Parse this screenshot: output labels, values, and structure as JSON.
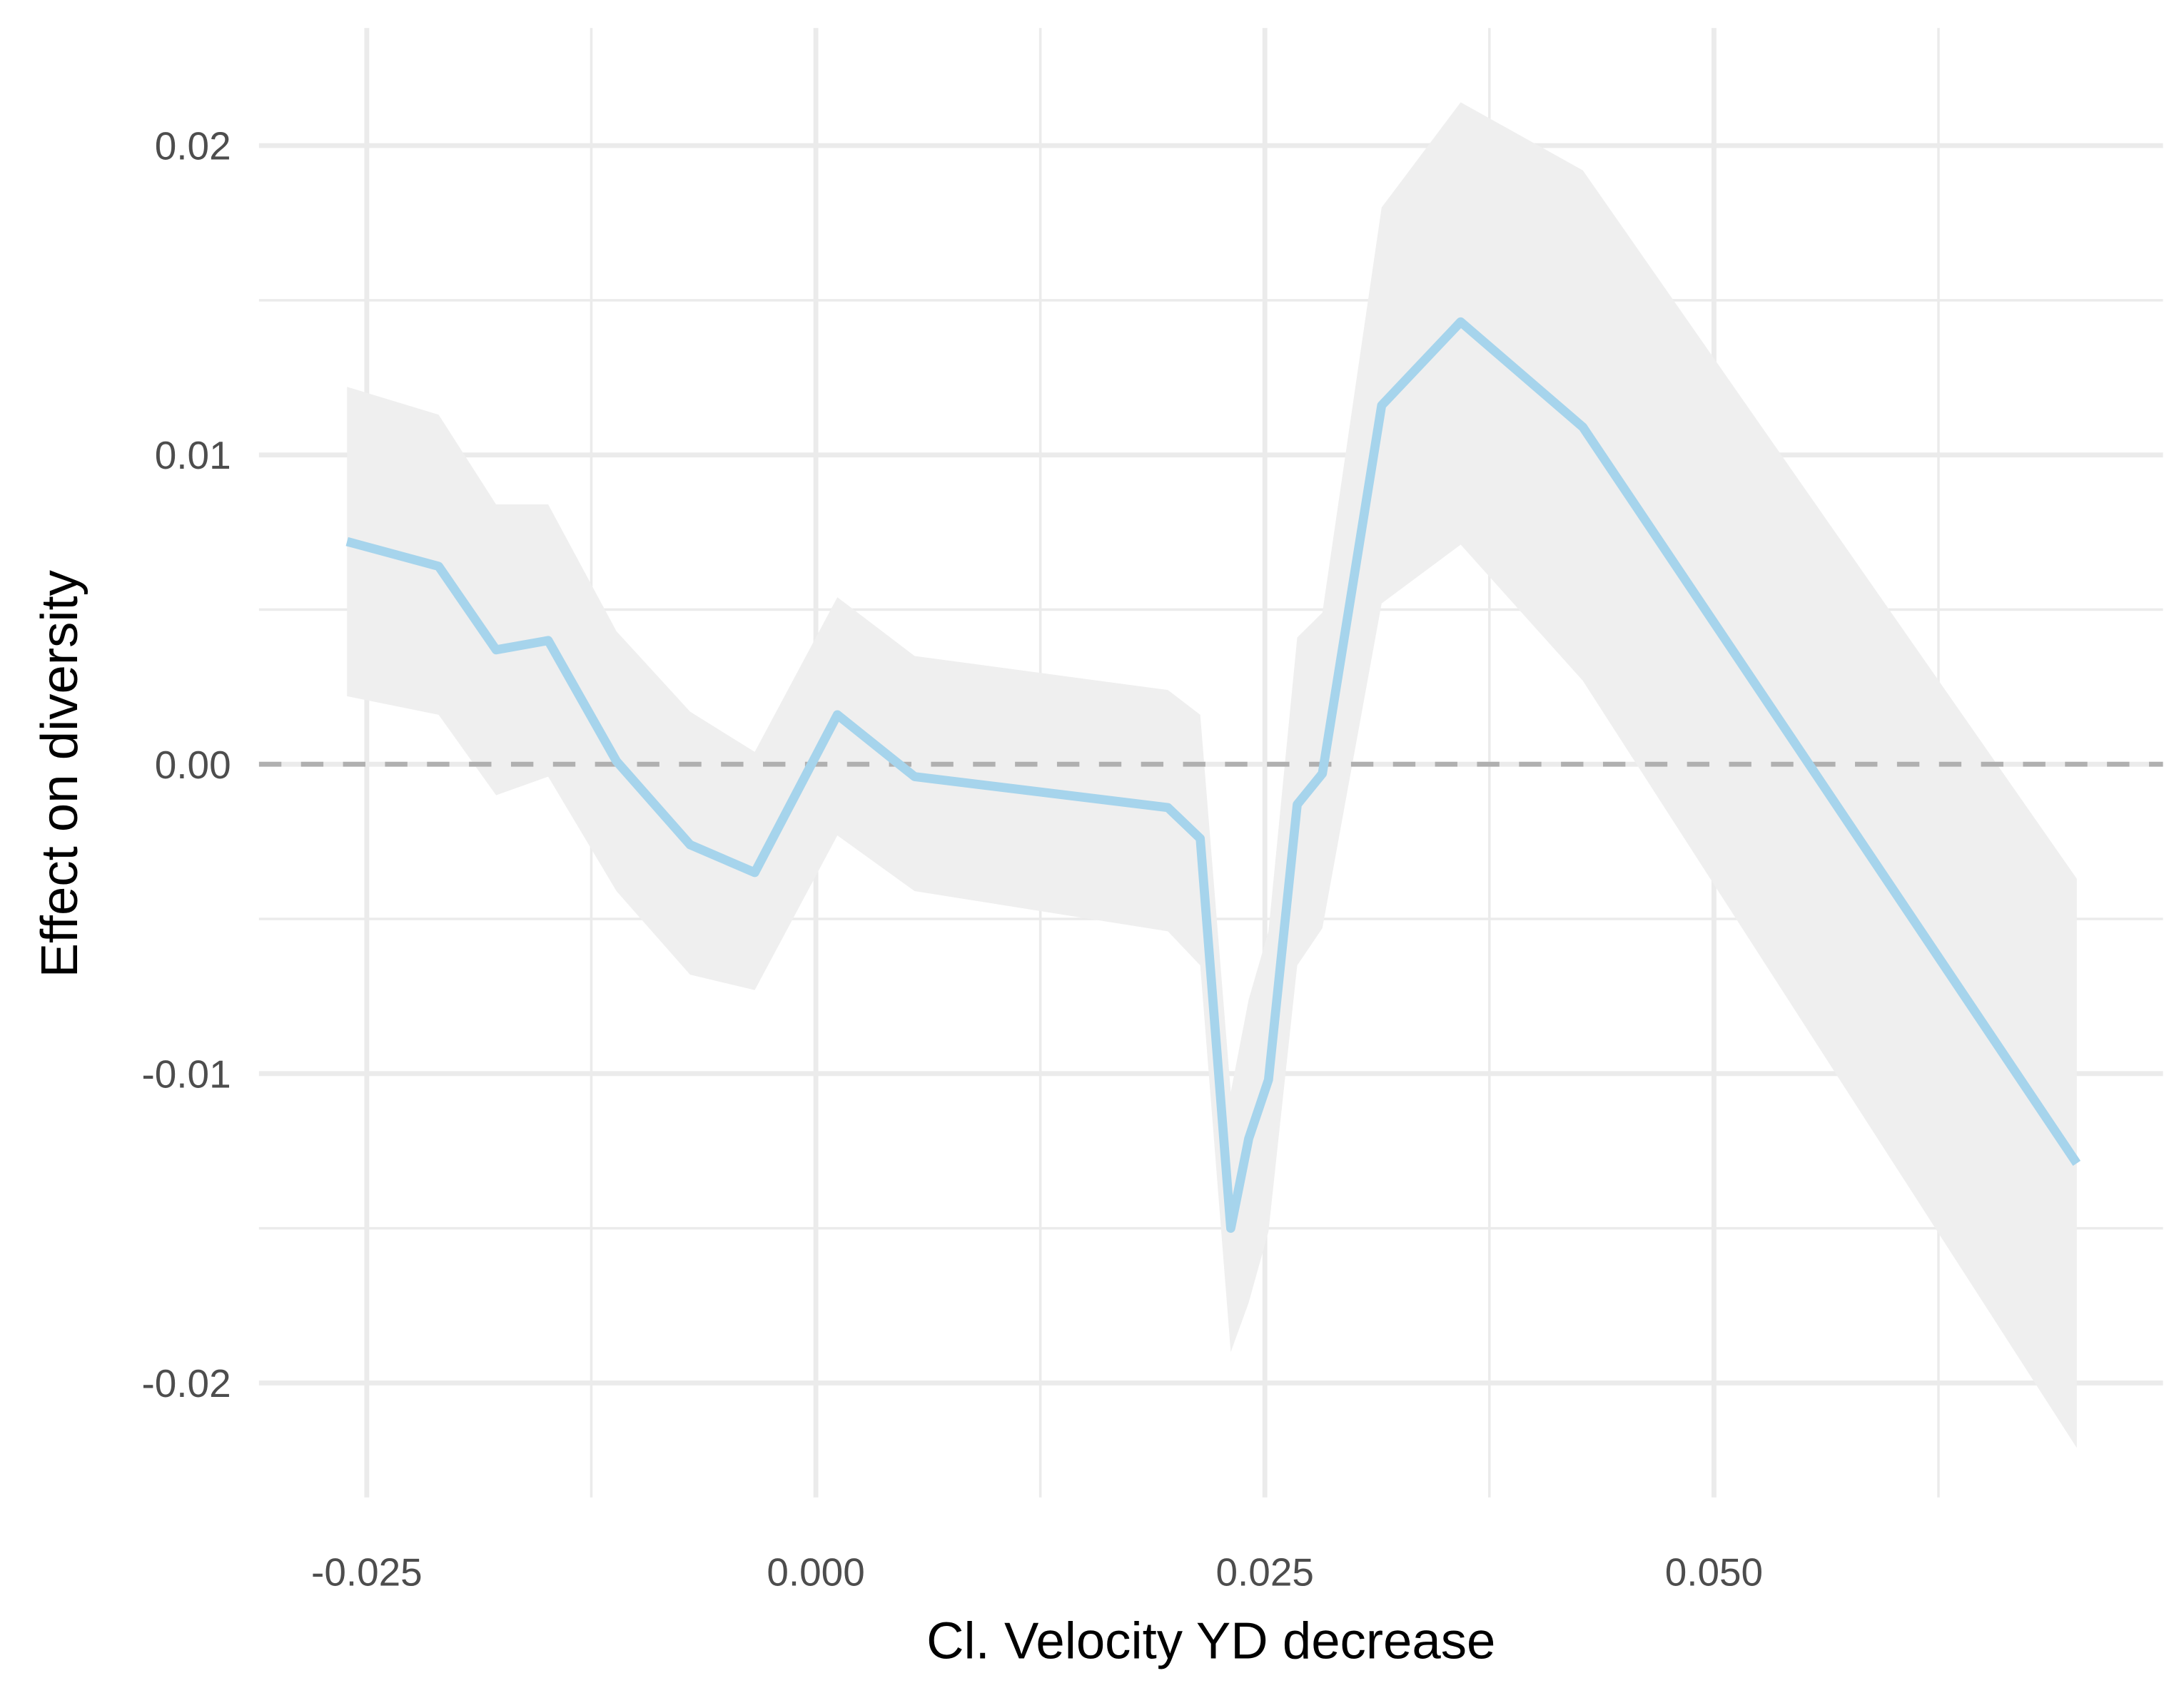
{
  "chart_data": {
    "type": "line",
    "x_label": "Cl. Velocity YD decrease",
    "y_label": "Effect on diversity",
    "x": [
      -0.0261,
      -0.021,
      -0.0178,
      -0.0149,
      -0.0111,
      -0.007,
      -0.0034,
      0.0012,
      0.0055,
      0.0196,
      0.0214,
      0.0231,
      0.0241,
      0.0252,
      0.0268,
      0.0282,
      0.0315,
      0.0359,
      0.0427,
      0.0702
    ],
    "values": [
      0.0072,
      0.0064,
      0.0037,
      0.004,
      0.0001,
      -0.0026,
      -0.0035,
      0.0016,
      -0.0004,
      -0.0014,
      -0.0024,
      -0.015,
      -0.0121,
      -0.0102,
      -0.0013,
      -0.0003,
      0.0116,
      0.0143,
      0.0109,
      -0.0129
    ],
    "upper": [
      0.0122,
      0.0113,
      0.0084,
      0.0084,
      0.0043,
      0.0017,
      0.0004,
      0.0054,
      0.0035,
      0.0024,
      0.0016,
      -0.0106,
      -0.0076,
      -0.0054,
      0.0041,
      0.0049,
      0.018,
      0.0214,
      0.0192,
      -0.0037
    ],
    "lower": [
      0.0022,
      0.0016,
      -0.001,
      -0.0004,
      -0.0041,
      -0.0068,
      -0.0073,
      -0.0023,
      -0.0041,
      -0.0054,
      -0.0065,
      -0.019,
      -0.0174,
      -0.0151,
      -0.0065,
      -0.0053,
      0.0052,
      0.0071,
      0.0027,
      -0.0221
    ],
    "color": "#a6d4ec",
    "band_color": "#efefef",
    "reference_line": {
      "value": 0,
      "color": "#b0b0b0",
      "dashed": true
    },
    "xlim": [
      -0.031,
      0.075
    ],
    "ylim": [
      -0.0237,
      0.0238
    ],
    "xticks": [
      {
        "value": -0.025,
        "label": "-0.025"
      },
      {
        "value": 0,
        "label": "0.000"
      },
      {
        "value": 0.025,
        "label": "0.025"
      },
      {
        "value": 0.05,
        "label": "0.050"
      }
    ],
    "yticks": [
      0.02,
      0.01,
      {
        "value": 0,
        "label": "0.00"
      },
      -0.01,
      -0.02
    ],
    "x_minor_ticks": [
      -0.0125,
      0.0125,
      0.0375,
      0.0625
    ],
    "y_minor_ticks": [
      0.015,
      0.005,
      -0.005,
      -0.015
    ],
    "grid": true
  }
}
